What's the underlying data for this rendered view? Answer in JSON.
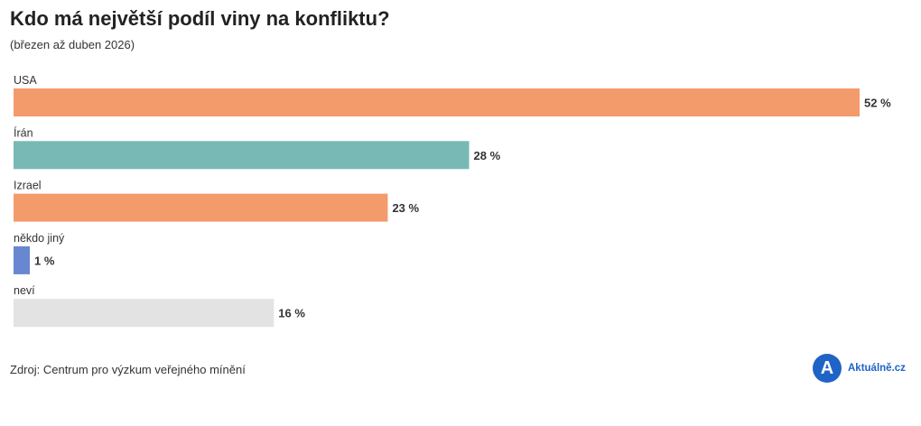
{
  "header": {
    "title": "Kdo má největší podíl viny na konfliktu?",
    "subtitle": "(březen až duben 2026)"
  },
  "footer": {
    "source": "Zdroj: Centrum pro výzkum veřejného mínění",
    "logo_mark": "A",
    "logo_text": "Aktuálně.cz"
  },
  "value_suffix": " %",
  "chart_data": {
    "type": "bar",
    "orientation": "horizontal",
    "title": "Kdo má největší podíl viny na konfliktu?",
    "subtitle": "(březen až duben 2026)",
    "categories": [
      "USA",
      "Írán",
      "Izrael",
      "někdo jiný",
      "neví"
    ],
    "values": [
      52,
      28,
      23,
      1,
      16
    ],
    "unit": "%",
    "colors": [
      "#f39b6b",
      "#78b9b5",
      "#f39b6b",
      "#6887d0",
      "#e3e3e3"
    ],
    "xlim": [
      0,
      52
    ],
    "grid": false,
    "legend": "none"
  }
}
